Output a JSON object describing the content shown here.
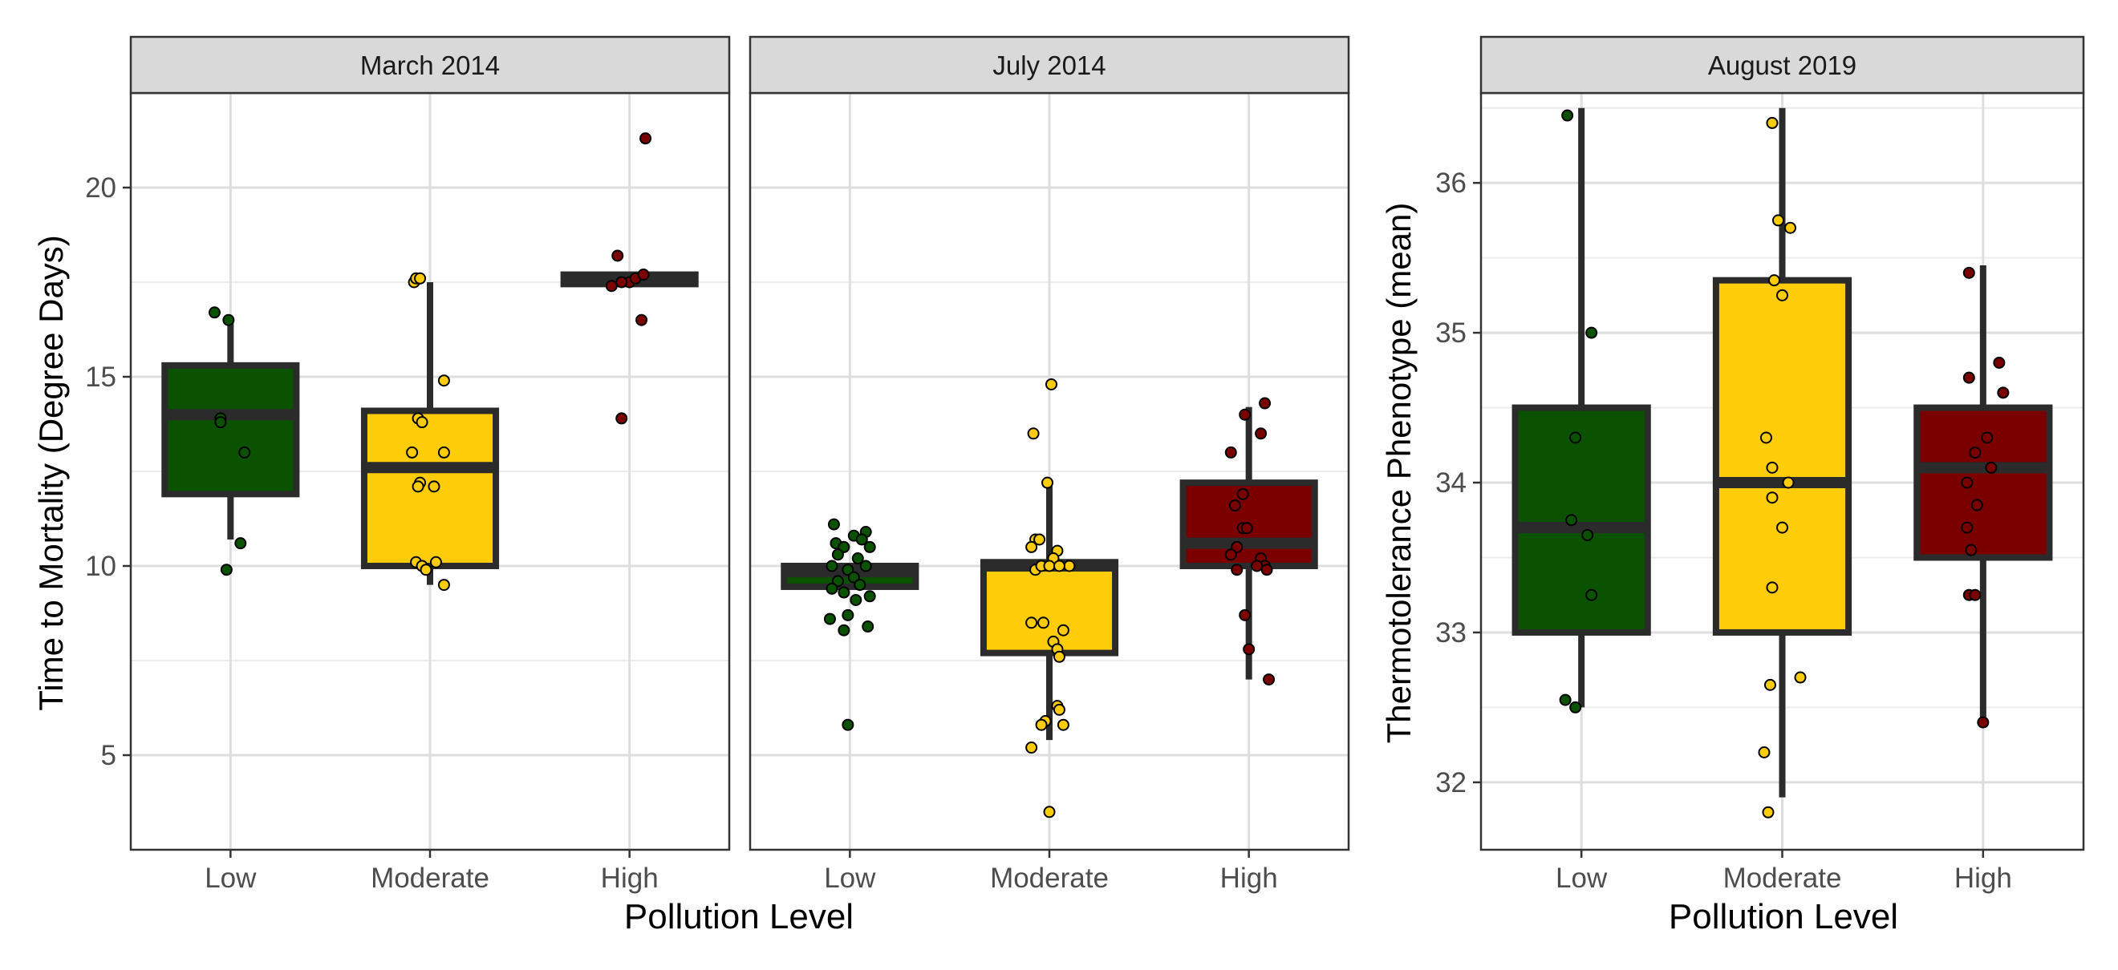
{
  "figure": {
    "panels_left": {
      "ylabel": "Time to Mortality (Degree Days)",
      "xlabel": "Pollution Level"
    },
    "panel_right": {
      "ylabel": "Thermotolerance Phenotype (mean)",
      "xlabel": "Pollution Level"
    }
  },
  "chart_data": [
    {
      "type": "box",
      "title": "March 2014",
      "categories": [
        "Low",
        "Moderate",
        "High"
      ],
      "colors": [
        "#0a5200",
        "#ffcc0a",
        "#7a0000"
      ],
      "ylim": [
        2.5,
        22.5
      ],
      "yticks": [
        5,
        10,
        15,
        20
      ],
      "grid": true,
      "boxes": [
        {
          "q1": 11.9,
          "median": 14.0,
          "q3": 15.3,
          "whisker_low": 10.7,
          "whisker_high": 16.5
        },
        {
          "q1": 10.0,
          "median": 12.6,
          "q3": 14.1,
          "whisker_low": 9.5,
          "whisker_high": 17.5
        },
        {
          "q1": 17.45,
          "median": 17.55,
          "q3": 17.7,
          "whisker_low": 17.45,
          "whisker_high": 17.7
        }
      ],
      "points": [
        [
          [
            -0.08,
            16.7
          ],
          [
            -0.01,
            16.5
          ],
          [
            -0.05,
            13.9
          ],
          [
            -0.05,
            13.8
          ],
          [
            0.07,
            13.0
          ],
          [
            0.05,
            10.6
          ],
          [
            -0.02,
            9.9
          ]
        ],
        [
          [
            -0.08,
            17.5
          ],
          [
            -0.07,
            17.6
          ],
          [
            -0.05,
            17.6
          ],
          [
            0.07,
            14.9
          ],
          [
            -0.06,
            13.9
          ],
          [
            -0.04,
            13.8
          ],
          [
            -0.09,
            13.0
          ],
          [
            0.07,
            13.0
          ],
          [
            -0.05,
            12.2
          ],
          [
            -0.06,
            12.1
          ],
          [
            0.02,
            12.1
          ],
          [
            -0.07,
            10.1
          ],
          [
            0.03,
            10.1
          ],
          [
            -0.04,
            10.0
          ],
          [
            -0.02,
            9.9
          ],
          [
            0.07,
            9.5
          ]
        ],
        [
          [
            0.08,
            21.3
          ],
          [
            -0.06,
            18.2
          ],
          [
            -0.09,
            17.4
          ],
          [
            0.0,
            17.5
          ],
          [
            0.03,
            17.6
          ],
          [
            0.07,
            17.7
          ],
          [
            -0.04,
            17.5
          ],
          [
            0.06,
            16.5
          ],
          [
            -0.04,
            13.9
          ]
        ]
      ]
    },
    {
      "type": "box",
      "title": "July 2014",
      "categories": [
        "Low",
        "Moderate",
        "High"
      ],
      "colors": [
        "#0a5200",
        "#ffcc0a",
        "#7a0000"
      ],
      "ylim": [
        2.5,
        22.5
      ],
      "yticks": [
        5,
        10,
        15,
        20
      ],
      "grid": true,
      "boxes": [
        {
          "q1": 9.45,
          "median": 9.85,
          "q3": 10.0,
          "whisker_low": 9.45,
          "whisker_high": 10.0
        },
        {
          "q1": 7.7,
          "median": 10.0,
          "q3": 10.1,
          "whisker_low": 5.4,
          "whisker_high": 12.2
        },
        {
          "q1": 10.0,
          "median": 10.6,
          "q3": 12.2,
          "whisker_low": 7.0,
          "whisker_high": 14.2
        }
      ],
      "points": [
        [
          [
            0.08,
            10.9
          ],
          [
            -0.08,
            11.1
          ],
          [
            0.02,
            10.8
          ],
          [
            0.06,
            10.7
          ],
          [
            -0.07,
            10.6
          ],
          [
            0.1,
            10.5
          ],
          [
            -0.03,
            10.5
          ],
          [
            -0.06,
            10.3
          ],
          [
            0.04,
            10.2
          ],
          [
            -0.09,
            10.0
          ],
          [
            0.08,
            10.0
          ],
          [
            -0.01,
            9.9
          ],
          [
            0.02,
            9.7
          ],
          [
            -0.06,
            9.6
          ],
          [
            0.05,
            9.5
          ],
          [
            -0.09,
            9.4
          ],
          [
            -0.03,
            9.3
          ],
          [
            0.1,
            9.2
          ],
          [
            0.03,
            9.1
          ],
          [
            -0.01,
            8.7
          ],
          [
            -0.1,
            8.6
          ],
          [
            0.09,
            8.4
          ],
          [
            -0.03,
            8.3
          ],
          [
            -0.01,
            5.8
          ]
        ],
        [
          [
            0.01,
            14.8
          ],
          [
            -0.08,
            13.5
          ],
          [
            -0.01,
            12.2
          ],
          [
            -0.07,
            10.7
          ],
          [
            -0.05,
            10.7
          ],
          [
            -0.09,
            10.5
          ],
          [
            0.04,
            10.4
          ],
          [
            0.02,
            10.2
          ],
          [
            0.1,
            10.0
          ],
          [
            -0.07,
            9.9
          ],
          [
            -0.04,
            10.0
          ],
          [
            0.0,
            10.0
          ],
          [
            0.05,
            10.0
          ],
          [
            -0.09,
            8.5
          ],
          [
            -0.03,
            8.5
          ],
          [
            0.07,
            8.3
          ],
          [
            0.02,
            8.0
          ],
          [
            0.04,
            7.8
          ],
          [
            0.05,
            7.6
          ],
          [
            0.04,
            6.3
          ],
          [
            0.05,
            6.2
          ],
          [
            -0.02,
            5.9
          ],
          [
            -0.04,
            5.8
          ],
          [
            0.07,
            5.8
          ],
          [
            -0.09,
            5.2
          ],
          [
            0.0,
            3.5
          ]
        ],
        [
          [
            -0.02,
            14.0
          ],
          [
            0.08,
            14.3
          ],
          [
            0.06,
            13.5
          ],
          [
            -0.09,
            13.0
          ],
          [
            -0.03,
            11.9
          ],
          [
            -0.07,
            11.6
          ],
          [
            -0.03,
            11.0
          ],
          [
            -0.01,
            11.0
          ],
          [
            -0.06,
            10.5
          ],
          [
            -0.09,
            10.3
          ],
          [
            0.06,
            10.2
          ],
          [
            0.08,
            10.0
          ],
          [
            0.04,
            10.0
          ],
          [
            -0.06,
            9.9
          ],
          [
            0.09,
            9.9
          ],
          [
            -0.02,
            8.7
          ],
          [
            0.0,
            7.8
          ],
          [
            0.1,
            7.0
          ]
        ]
      ]
    },
    {
      "type": "box",
      "title": "August 2019",
      "categories": [
        "Low",
        "Moderate",
        "High"
      ],
      "colors": [
        "#0a5200",
        "#ffcc0a",
        "#7a0000"
      ],
      "ylim": [
        31.55,
        36.6
      ],
      "yticks": [
        32,
        33,
        34,
        35,
        36
      ],
      "grid": true,
      "boxes": [
        {
          "q1": 33.0,
          "median": 33.7,
          "q3": 34.5,
          "whisker_low": 32.5,
          "whisker_high": 36.5
        },
        {
          "q1": 33.0,
          "median": 34.0,
          "q3": 35.35,
          "whisker_low": 31.9,
          "whisker_high": 36.5
        },
        {
          "q1": 33.5,
          "median": 34.1,
          "q3": 34.5,
          "whisker_low": 32.4,
          "whisker_high": 35.45
        }
      ],
      "points": [
        [
          [
            -0.07,
            36.45
          ],
          [
            0.05,
            35.0
          ],
          [
            -0.03,
            34.3
          ],
          [
            -0.05,
            33.75
          ],
          [
            0.03,
            33.65
          ],
          [
            0.05,
            33.25
          ],
          [
            -0.08,
            32.55
          ],
          [
            -0.03,
            32.5
          ]
        ],
        [
          [
            -0.05,
            36.4
          ],
          [
            -0.04,
            35.35
          ],
          [
            -0.02,
            35.75
          ],
          [
            0.04,
            35.7
          ],
          [
            0.0,
            35.25
          ],
          [
            -0.08,
            34.3
          ],
          [
            -0.05,
            34.1
          ],
          [
            0.03,
            34.0
          ],
          [
            -0.05,
            33.9
          ],
          [
            0.0,
            33.7
          ],
          [
            -0.05,
            33.3
          ],
          [
            0.09,
            32.7
          ],
          [
            -0.06,
            32.65
          ],
          [
            -0.09,
            32.2
          ],
          [
            -0.07,
            31.8
          ]
        ],
        [
          [
            -0.07,
            35.4
          ],
          [
            0.08,
            34.8
          ],
          [
            -0.07,
            34.7
          ],
          [
            0.1,
            34.6
          ],
          [
            0.02,
            34.3
          ],
          [
            -0.04,
            34.2
          ],
          [
            -0.08,
            34.0
          ],
          [
            0.04,
            34.1
          ],
          [
            -0.03,
            33.85
          ],
          [
            -0.08,
            33.7
          ],
          [
            -0.06,
            33.55
          ],
          [
            -0.07,
            33.25
          ],
          [
            -0.04,
            33.25
          ],
          [
            0.0,
            32.4
          ]
        ]
      ]
    }
  ]
}
